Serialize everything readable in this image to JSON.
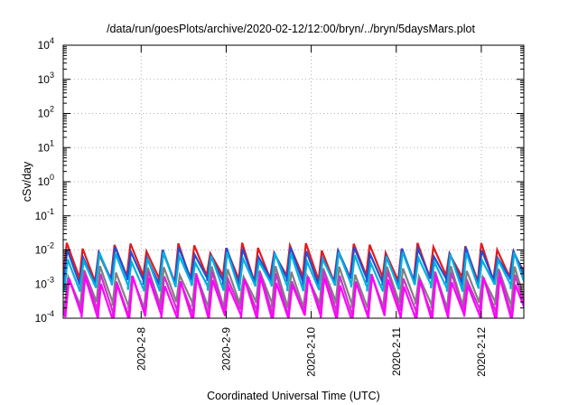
{
  "chart_data": {
    "type": "line",
    "title": "/data/run/goesPlots/archive/2020-02-12/12:00/bryn/../bryn/5daysMars.plot",
    "xlabel": "Coordinated Universal Time (UTC)",
    "ylabel": "cSv/day",
    "yscale": "log",
    "ylim": [
      0.0001,
      10000
    ],
    "y_ticks": [
      {
        "base": "10",
        "exp": "-4"
      },
      {
        "base": "10",
        "exp": "-3"
      },
      {
        "base": "10",
        "exp": "-2"
      },
      {
        "base": "10",
        "exp": "-1"
      },
      {
        "base": "10",
        "exp": "0"
      },
      {
        "base": "10",
        "exp": "1"
      },
      {
        "base": "10",
        "exp": "2"
      },
      {
        "base": "10",
        "exp": "3"
      },
      {
        "base": "10",
        "exp": "4"
      }
    ],
    "xlim": [
      "2020-02-07 02:00",
      "2020-02-12 12:00"
    ],
    "x_ticks": [
      {
        "label": "2020-2-8",
        "value": "2020-02-08 00:00"
      },
      {
        "label": "2020-2-9",
        "value": "2020-02-09 00:00"
      },
      {
        "label": "2020-2-10",
        "value": "2020-02-10 00:00"
      },
      {
        "label": "2020-2-11",
        "value": "2020-02-11 00:00"
      },
      {
        "label": "2020-2-12",
        "value": "2020-02-12 00:00"
      }
    ],
    "grid": true,
    "legend": "none",
    "sawtooth_period_hours": 4.5,
    "series": [
      {
        "color": "#e41a1c",
        "peak": 0.012,
        "trough": 0.0015
      },
      {
        "color": "#1f4fd8",
        "peak": 0.009,
        "trough": 0.0012
      },
      {
        "color": "#00b0e0",
        "peak": 0.0065,
        "trough": 0.0008
      },
      {
        "color": "#808080",
        "peak": 0.0025,
        "trough": 0.00025
      },
      {
        "color": "#cc33cc",
        "peak": 0.0018,
        "trough": 0.00015
      },
      {
        "color": "#ff00ff",
        "peak": 0.0013,
        "trough": 0.0001
      }
    ]
  }
}
